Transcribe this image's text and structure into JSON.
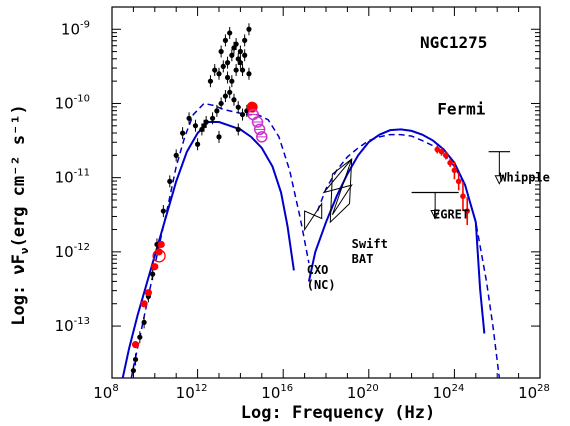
{
  "chart_data": {
    "type": "scatter",
    "title": "NGC1275",
    "xlabel": "Log: Frequency (Hz)",
    "ylabel": "Log: νF",
    "ylabel_sub": "ν",
    "ylabel_units": "(erg cm⁻² s⁻¹)",
    "xscale": "log",
    "yscale": "log",
    "xlim": [
      8,
      28
    ],
    "ylim": [
      -13.7,
      -8.7
    ],
    "x_ticks": [
      8,
      12,
      16,
      20,
      24,
      28
    ],
    "y_ticks": [
      -13,
      -12,
      -11,
      -10,
      -9
    ],
    "tick_base": "10",
    "grid": false,
    "colors": {
      "fermi": "#ff0000",
      "model": "#0000cc",
      "optical": "#cc33cc",
      "archival": "#000000"
    },
    "annotations": [
      {
        "text": "Fermi",
        "color": "#ff0000",
        "x": 23.2,
        "y": -10.15
      },
      {
        "text": "Swift",
        "x": 19.2,
        "y": -11.95
      },
      {
        "text": "BAT",
        "x": 19.2,
        "y": -12.15
      },
      {
        "text": "CXO",
        "x": 17.1,
        "y": -12.3
      },
      {
        "text": "(NC)",
        "x": 17.1,
        "y": -12.5
      },
      {
        "text": "EGRET",
        "x": 23.0,
        "y": -11.55
      },
      {
        "text": "Whipple",
        "x": 26.1,
        "y": -11.05
      }
    ],
    "series": [
      {
        "style": "solid-line",
        "x": [
          8.5,
          8.8,
          9.2,
          9.6,
          10.0,
          10.5,
          11.0,
          11.5,
          12.0,
          12.5,
          13.0,
          13.5,
          14.0,
          14.5,
          15.0,
          15.5,
          15.9,
          16.2,
          16.5
        ],
        "y": [
          -13.7,
          -13.3,
          -12.85,
          -12.45,
          -12.05,
          -11.55,
          -11.05,
          -10.65,
          -10.4,
          -10.25,
          -10.25,
          -10.3,
          -10.35,
          -10.45,
          -10.6,
          -10.85,
          -11.2,
          -11.65,
          -12.25
        ]
      },
      {
        "style": "dashed-line",
        "x": [
          8.9,
          9.3,
          9.7,
          10.1,
          10.6,
          11.0,
          11.4,
          11.8,
          12.3,
          12.8,
          13.2,
          13.8,
          14.3,
          14.8,
          15.3,
          15.8,
          16.3,
          16.8,
          17.2
        ],
        "y": [
          -13.7,
          -13.15,
          -12.6,
          -12.05,
          -11.4,
          -10.85,
          -10.45,
          -10.15,
          -10.0,
          -10.03,
          -10.08,
          -10.12,
          -10.15,
          -10.15,
          -10.22,
          -10.45,
          -10.9,
          -11.55,
          -12.15
        ]
      },
      {
        "style": "solid-line",
        "x": [
          17.2,
          17.5,
          18.0,
          18.5,
          19.0,
          19.5,
          20.0,
          20.5,
          21.0,
          21.5,
          22.0,
          22.5,
          23.0,
          23.5,
          24.0,
          24.5,
          25.0,
          25.2,
          25.4
        ],
        "y": [
          -12.4,
          -12.0,
          -11.6,
          -11.25,
          -10.95,
          -10.7,
          -10.52,
          -10.42,
          -10.36,
          -10.35,
          -10.37,
          -10.42,
          -10.5,
          -10.62,
          -10.8,
          -11.1,
          -11.6,
          -12.5,
          -13.1
        ]
      },
      {
        "style": "dashed-line",
        "x": [
          17.6,
          18.0,
          18.5,
          19.0,
          19.5,
          20.0,
          20.5,
          21.0,
          21.5,
          22.0,
          22.5,
          23.0,
          23.5,
          24.0,
          24.5,
          25.0,
          25.5,
          25.8,
          26.1
        ],
        "y": [
          -11.45,
          -11.15,
          -10.9,
          -10.72,
          -10.6,
          -10.5,
          -10.45,
          -10.42,
          -10.42,
          -10.44,
          -10.5,
          -10.57,
          -10.68,
          -10.85,
          -11.1,
          -11.6,
          -12.4,
          -13.0,
          -13.7
        ]
      },
      {
        "style": "archival-points",
        "x": [
          9.0,
          9.1,
          9.3,
          9.5,
          9.7,
          9.9,
          10.1,
          10.4,
          10.7,
          11.0,
          11.3,
          11.6,
          11.9,
          12.2,
          12.4,
          12.7,
          12.9,
          13.1,
          13.3,
          13.5,
          13.7,
          13.9,
          14.1,
          14.3,
          13.4,
          13.6,
          13.8,
          14.0,
          14.2,
          14.4,
          12.6,
          12.8,
          13.0,
          13.2,
          13.4,
          13.6,
          13.8,
          14.0,
          14.2,
          14.4,
          13.1,
          13.3,
          13.5,
          13.7,
          13.9,
          14.1,
          12.0,
          12.3,
          13.0,
          13.9
        ],
        "y": [
          -13.6,
          -13.45,
          -13.15,
          -12.95,
          -12.6,
          -12.3,
          -11.9,
          -11.45,
          -11.05,
          -10.7,
          -10.4,
          -10.2,
          -10.3,
          -10.35,
          -10.25,
          -10.2,
          -10.1,
          -10.0,
          -9.9,
          -9.85,
          -9.95,
          -10.05,
          -10.15,
          -10.1,
          -9.45,
          -9.35,
          -9.2,
          -9.3,
          -9.15,
          -9.0,
          -9.7,
          -9.55,
          -9.6,
          -9.5,
          -9.65,
          -9.7,
          -9.55,
          -9.45,
          -9.35,
          -9.6,
          -9.3,
          -9.15,
          -9.05,
          -9.25,
          -9.4,
          -9.55,
          -10.55,
          -10.3,
          -10.45,
          -10.35
        ]
      },
      {
        "style": "red-points",
        "x": [
          9.1,
          9.5,
          9.7,
          10.0,
          10.2,
          10.3
        ],
        "y": [
          -13.25,
          -12.7,
          -12.55,
          -12.2,
          -12.0,
          -11.9
        ]
      },
      {
        "style": "optical-points",
        "x": [
          14.6,
          14.8,
          14.9,
          15.0
        ],
        "y": [
          -10.15,
          -10.25,
          -10.35,
          -10.45
        ]
      },
      {
        "style": "fermi-points",
        "x": [
          23.2,
          23.4,
          23.6,
          23.8,
          24.0,
          24.2,
          24.4,
          24.6
        ],
        "y": [
          -10.62,
          -10.65,
          -10.7,
          -10.8,
          -10.9,
          -11.05,
          -11.25,
          -11.45
        ]
      }
    ]
  }
}
